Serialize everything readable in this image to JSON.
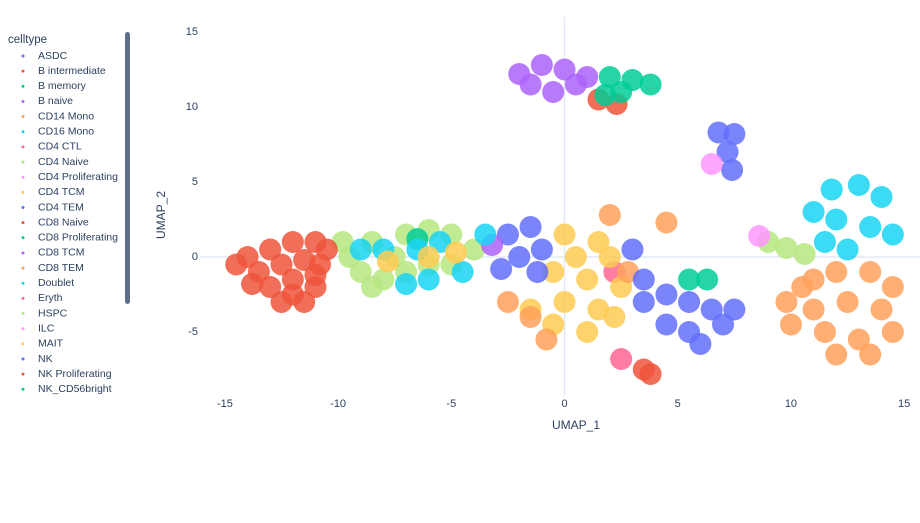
{
  "chart_data": {
    "type": "scatter",
    "xlabel": "UMAP_1",
    "ylabel": "UMAP_2",
    "legend_title": "celltype",
    "legend_position": "left",
    "xlim": [
      -16.1,
      15.7
    ],
    "ylim": [
      -9.2,
      16
    ],
    "xticks": [
      -15,
      -10,
      -5,
      0,
      5,
      10,
      15
    ],
    "yticks": [
      -5,
      0,
      5,
      10,
      15
    ],
    "grid": false,
    "zeroline": true,
    "series": [
      {
        "name": "ASDC",
        "color": "#636efa",
        "x": [
          6.8,
          7.5,
          7.2,
          7.4
        ],
        "y": [
          8.3,
          8.2,
          7,
          5.8
        ]
      },
      {
        "name": "B intermediate",
        "color": "#EF553B",
        "x": [
          1.5,
          2.3
        ],
        "y": [
          10.5,
          10.2
        ]
      },
      {
        "name": "B memory",
        "color": "#00cc96",
        "x": [
          2,
          3,
          3.8,
          2.5,
          1.8
        ],
        "y": [
          12,
          11.8,
          11.5,
          11,
          10.8
        ]
      },
      {
        "name": "B naive",
        "color": "#ab63fa",
        "x": [
          -2,
          -1,
          0,
          1,
          -1.5,
          -0.5,
          0.5
        ],
        "y": [
          12.2,
          12.8,
          12.5,
          12,
          11.5,
          11,
          11.5
        ]
      },
      {
        "name": "CD14 Mono",
        "color": "#FFA15A",
        "x": [
          10.5,
          12,
          13.5,
          14.5,
          11,
          12.5,
          14,
          10,
          11.5,
          13,
          14.5,
          12,
          13.5,
          11,
          9.8
        ],
        "y": [
          -2,
          -1,
          -1,
          -2,
          -3.5,
          -3,
          -3.5,
          -4.5,
          -5,
          -5.5,
          -5,
          -6.5,
          -6.5,
          -1.5,
          -3
        ]
      },
      {
        "name": "CD16 Mono",
        "color": "#19d3f3",
        "x": [
          11.8,
          13,
          14,
          12,
          13.5,
          11.5,
          14.5,
          12.5,
          11
        ],
        "y": [
          4.5,
          4.8,
          4,
          2.5,
          2,
          1,
          1.5,
          0.5,
          3
        ]
      },
      {
        "name": "CD4 CTL",
        "color": "#FF6692",
        "x": [
          2.2
        ],
        "y": [
          -1
        ]
      },
      {
        "name": "CD4 Naive",
        "color": "#B6E880",
        "x": [
          -9.5,
          -8.5,
          -7,
          -6,
          -5,
          -9,
          -8,
          -7,
          -6,
          -5,
          -4,
          -7.5,
          -9.8,
          -8.5
        ],
        "y": [
          0,
          1,
          1.5,
          1.8,
          1.5,
          -1,
          -1.5,
          -1,
          -0.5,
          -0.5,
          0.5,
          0,
          1,
          -2
        ]
      },
      {
        "name": "CD4 Proliferating",
        "color": "#FF97FF",
        "x": [
          6.5
        ],
        "y": [
          6.2
        ]
      },
      {
        "name": "CD4 TCM",
        "color": "#FECB52",
        "x": [
          0,
          1.5,
          2,
          0.5,
          -0.5,
          1,
          2.5,
          0,
          1.5,
          -0.5,
          1,
          2.2,
          -1.5
        ],
        "y": [
          1.5,
          1,
          0,
          0,
          -1,
          -1.5,
          -2,
          -3,
          -3.5,
          -4.5,
          -5,
          -4,
          -3.5
        ]
      },
      {
        "name": "CD4 TEM",
        "color": "#636efa",
        "x": [
          -2.5,
          -1.5,
          -2,
          -1,
          -2.8,
          -1.2
        ],
        "y": [
          1.5,
          2,
          0,
          0.5,
          -0.8,
          -1
        ]
      },
      {
        "name": "CD8 Naive",
        "color": "#EF553B",
        "x": [
          -14,
          -13,
          -12,
          -11,
          -13.5,
          -12.5,
          -11.5,
          -10.8,
          -13,
          -12,
          -11,
          -11.5,
          -12.5,
          -14.5,
          -10.5,
          -13.8,
          -12,
          -11
        ],
        "y": [
          0,
          0.5,
          1,
          1,
          -1,
          -0.5,
          -0.2,
          -0.5,
          -2,
          -2.5,
          -2,
          -3,
          -3,
          -0.5,
          0.5,
          -1.8,
          -1.5,
          -1.2
        ]
      },
      {
        "name": "CD8 Proliferating",
        "color": "#00cc96",
        "x": [
          -6.5
        ],
        "y": [
          1.2
        ]
      },
      {
        "name": "CD8 TCM",
        "color": "#ab63fa",
        "x": [
          -3.2
        ],
        "y": [
          0.8
        ]
      },
      {
        "name": "CD8 TEM",
        "color": "#FFA15A",
        "x": [
          -2.5,
          -1.5,
          -0.8,
          2,
          4.5,
          2.8
        ],
        "y": [
          -3,
          -4,
          -5.5,
          2.8,
          2.3,
          -1
        ]
      },
      {
        "name": "Doublet",
        "color": "#19d3f3",
        "x": [
          -8,
          -6.5,
          -5.5,
          -7,
          -4.5,
          -3.5,
          -6,
          -9
        ],
        "y": [
          0.5,
          0.5,
          1,
          -1.8,
          -1,
          1.5,
          -1.5,
          0.5
        ]
      },
      {
        "name": "Eryth",
        "color": "#FF6692",
        "x": [
          2.5
        ],
        "y": [
          -6.8
        ]
      },
      {
        "name": "HSPC",
        "color": "#B6E880",
        "x": [
          9,
          9.8,
          10.6
        ],
        "y": [
          1,
          0.6,
          0.2
        ]
      },
      {
        "name": "ILC",
        "color": "#FF97FF",
        "x": [
          8.6
        ],
        "y": [
          1.4
        ]
      },
      {
        "name": "MAIT",
        "color": "#FECB52",
        "x": [
          -7.8,
          -6,
          -4.8
        ],
        "y": [
          -0.3,
          0,
          0.3
        ]
      },
      {
        "name": "NK",
        "color": "#636efa",
        "x": [
          4.5,
          5.5,
          6.5,
          7,
          5.5,
          4.5,
          6,
          3.5,
          7.5,
          3,
          3.5
        ],
        "y": [
          -2.5,
          -3,
          -3.5,
          -4.5,
          -5,
          -4.5,
          -5.8,
          -3,
          -3.5,
          0.5,
          -1.5
        ]
      },
      {
        "name": "NK Proliferating",
        "color": "#EF553B",
        "x": [
          3.5,
          3.8
        ],
        "y": [
          -7.5,
          -7.8
        ]
      },
      {
        "name": "NK_CD56bright",
        "color": "#00cc96",
        "x": [
          5.5,
          6.3
        ],
        "y": [
          -1.5,
          -1.5
        ]
      }
    ]
  }
}
